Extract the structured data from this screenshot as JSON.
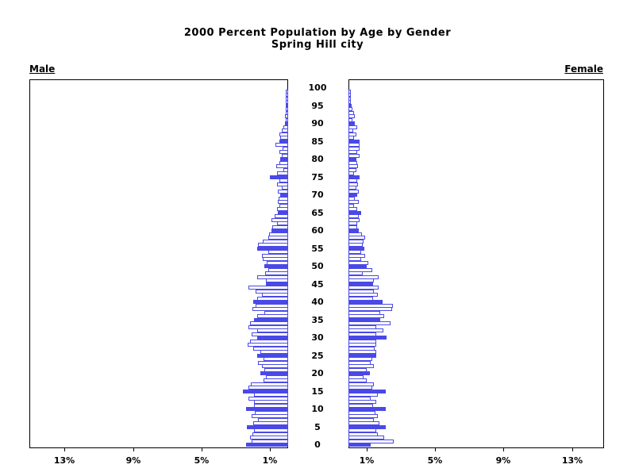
{
  "title": {
    "line1": "2000 Percent Population by Age by Gender",
    "line2": "Spring Hill city"
  },
  "panels": {
    "male_label": "Male",
    "female_label": "Female"
  },
  "colors": {
    "bar_blue": "#4a49e8",
    "axis_black": "#000000",
    "background": "#ffffff"
  },
  "axis": {
    "age_tick_labels": [
      "0",
      "5",
      "10",
      "15",
      "20",
      "25",
      "30",
      "35",
      "40",
      "45",
      "50",
      "55",
      "60",
      "65",
      "70",
      "75",
      "80",
      "85",
      "90",
      "95",
      "100"
    ],
    "male_tick_labels": [
      "13%",
      "9%",
      "5%",
      "1%"
    ],
    "male_tick_percents": [
      13,
      9,
      5,
      1
    ],
    "female_tick_labels": [
      "1%",
      "5%",
      "9%",
      "13%"
    ],
    "female_tick_percents": [
      1,
      5,
      9,
      13
    ]
  },
  "chart_data": {
    "type": "bar",
    "subtype": "population-pyramid",
    "title": "2000 Percent Population by Age by Gender — Spring Hill city",
    "unit": "percent of total population",
    "age_min": 0,
    "age_max": 100,
    "age_step": 1,
    "xlim_percent": [
      0,
      15
    ],
    "x_ticks_percent": [
      1,
      5,
      9,
      13
    ],
    "grid": false,
    "legend_position": "none",
    "style_note": "bars at ages divisible by 5 are solid filled blue; other ages are white with blue outline",
    "series": [
      {
        "name": "Male",
        "side": "left",
        "values": [
          2.35,
          2.05,
          2.15,
          2.0,
          1.9,
          2.3,
          1.95,
          1.65,
          2.05,
          1.85,
          2.35,
          1.9,
          1.9,
          2.2,
          1.9,
          2.55,
          2.2,
          2.1,
          1.35,
          1.2,
          1.55,
          1.3,
          1.45,
          1.65,
          1.35,
          1.7,
          1.55,
          1.95,
          2.25,
          2.15,
          1.7,
          2.05,
          1.7,
          2.2,
          2.15,
          1.9,
          1.7,
          1.3,
          2.0,
          1.8,
          1.95,
          1.7,
          1.45,
          1.8,
          2.2,
          1.2,
          1.2,
          1.7,
          1.25,
          1.05,
          1.3,
          1.15,
          1.4,
          1.45,
          1.05,
          1.7,
          1.65,
          1.4,
          1.05,
          1.0,
          0.9,
          0.85,
          0.55,
          0.9,
          0.7,
          0.5,
          0.55,
          0.4,
          0.5,
          0.45,
          0.35,
          0.5,
          0.3,
          0.55,
          0.4,
          0.95,
          0.55,
          0.2,
          0.6,
          0.4,
          0.35,
          0.3,
          0.4,
          0.25,
          0.65,
          0.4,
          0.35,
          0.4,
          0.3,
          0.2,
          0.1,
          0.05,
          0.1,
          0.05,
          0.05,
          0.05,
          0.05,
          0.03,
          0.02,
          0.02,
          0
        ]
      },
      {
        "name": "Female",
        "side": "right",
        "values": [
          1.2,
          2.55,
          2.0,
          1.6,
          1.55,
          2.1,
          1.7,
          1.4,
          1.6,
          1.5,
          2.1,
          1.35,
          1.55,
          1.2,
          1.6,
          2.1,
          1.3,
          1.4,
          0.95,
          0.8,
          1.15,
          0.95,
          1.4,
          1.2,
          1.3,
          1.55,
          1.55,
          1.45,
          1.55,
          1.55,
          2.15,
          1.55,
          1.95,
          1.55,
          2.35,
          1.75,
          2.0,
          1.75,
          2.45,
          2.5,
          1.9,
          1.35,
          1.6,
          1.4,
          1.65,
          1.35,
          1.4,
          1.65,
          0.75,
          1.3,
          0.95,
          1.05,
          0.65,
          0.9,
          0.65,
          0.85,
          0.75,
          0.8,
          0.9,
          0.7,
          0.5,
          0.4,
          0.4,
          0.55,
          0.5,
          0.65,
          0.4,
          0.25,
          0.5,
          0.3,
          0.4,
          0.5,
          0.35,
          0.45,
          0.4,
          0.55,
          0.25,
          0.35,
          0.45,
          0.4,
          0.35,
          0.55,
          0.4,
          0.55,
          0.55,
          0.55,
          0.25,
          0.35,
          0.2,
          0.4,
          0.3,
          0.15,
          0.3,
          0.25,
          0.15,
          0.1,
          0.05,
          0.03,
          0.03,
          0.02,
          0
        ]
      }
    ]
  }
}
